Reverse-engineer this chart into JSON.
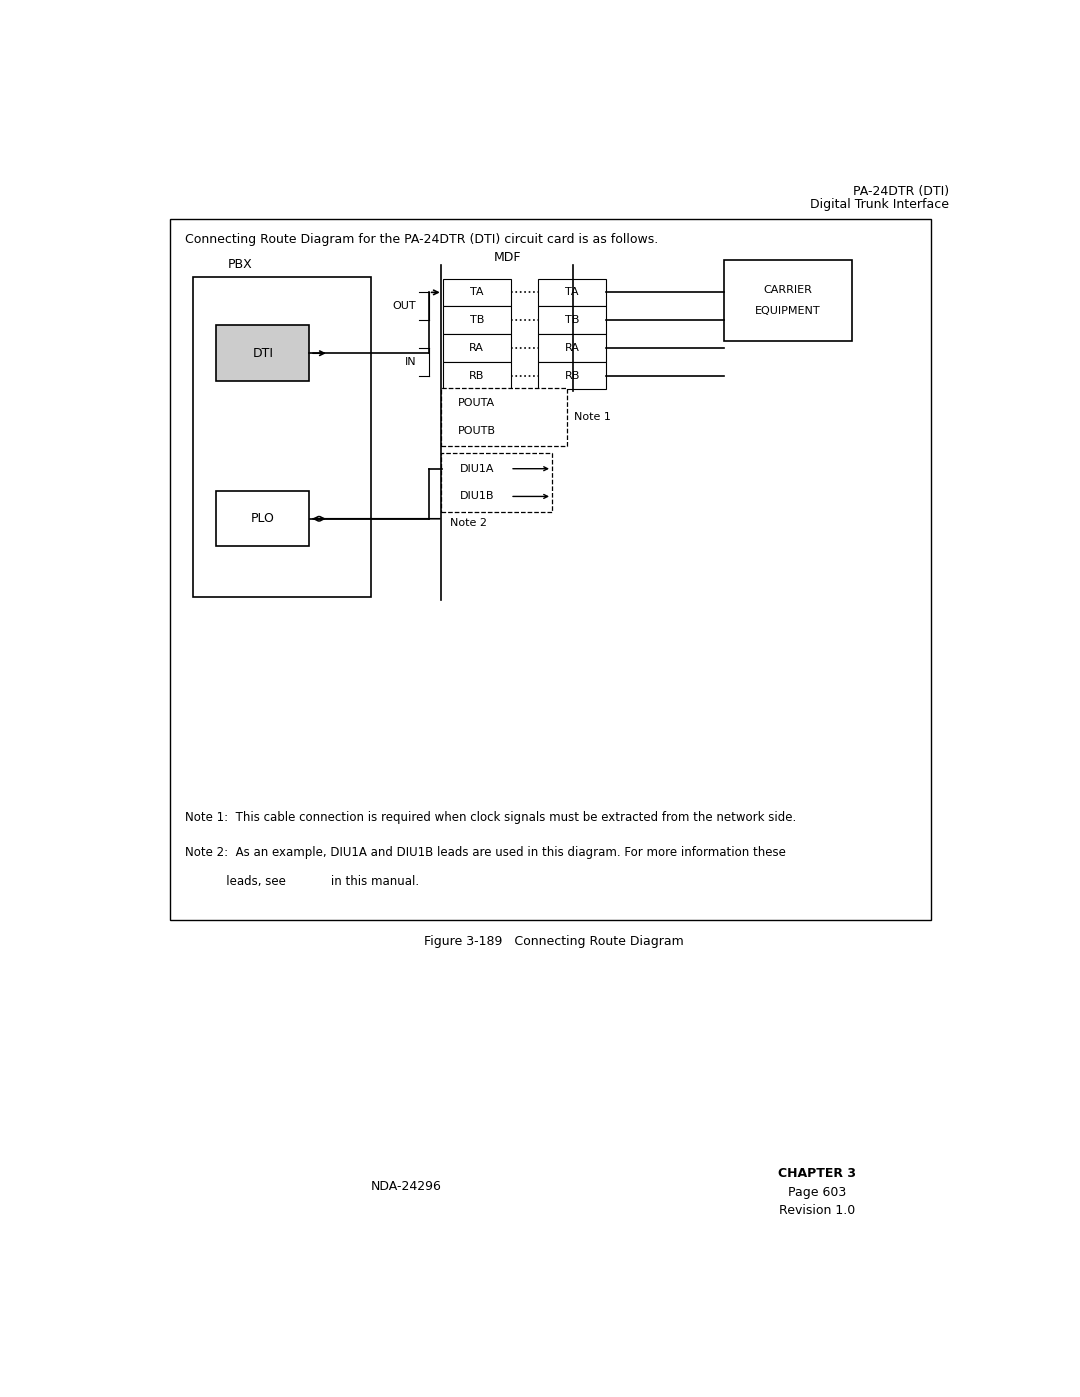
{
  "page_title_line1": "PA-24DTR (DTI)",
  "page_title_line2": "Digital Trunk Interface",
  "box_title": "Connecting Route Diagram for the PA-24DTR (DTI) circuit card is as follows.",
  "figure_caption": "Figure 3-189   Connecting Route Diagram",
  "footer_left": "NDA-24296",
  "footer_right_line1": "CHAPTER 3",
  "footer_right_line2": "Page 603",
  "footer_right_line3": "Revision 1.0",
  "note1": "Note 1:  This cable connection is required when clock signals must be extracted from the network side.",
  "note2_line1": "Note 2:  As an example, DIU1A and DIU1B leads are used in this diagram. For more information these",
  "note2_line2": "           leads, see            in this manual.",
  "pbx_label": "PBX",
  "mdf_label": "MDF",
  "dti_label": "DTI",
  "plo_label": "PLO",
  "carrier_label_line1": "CARRIER",
  "carrier_label_line2": "EQUIPMENT",
  "out_label": "OUT",
  "in_label": "IN",
  "note1_label": "Note 1",
  "note2_label": "Note 2",
  "bg_color": "#ffffff",
  "box_line_color": "#000000",
  "text_color": "#000000",
  "dti_fill": "#cccccc",
  "fontsize_title": 10,
  "fontsize_body": 9,
  "fontsize_small": 8.5,
  "fontsize_label": 8
}
